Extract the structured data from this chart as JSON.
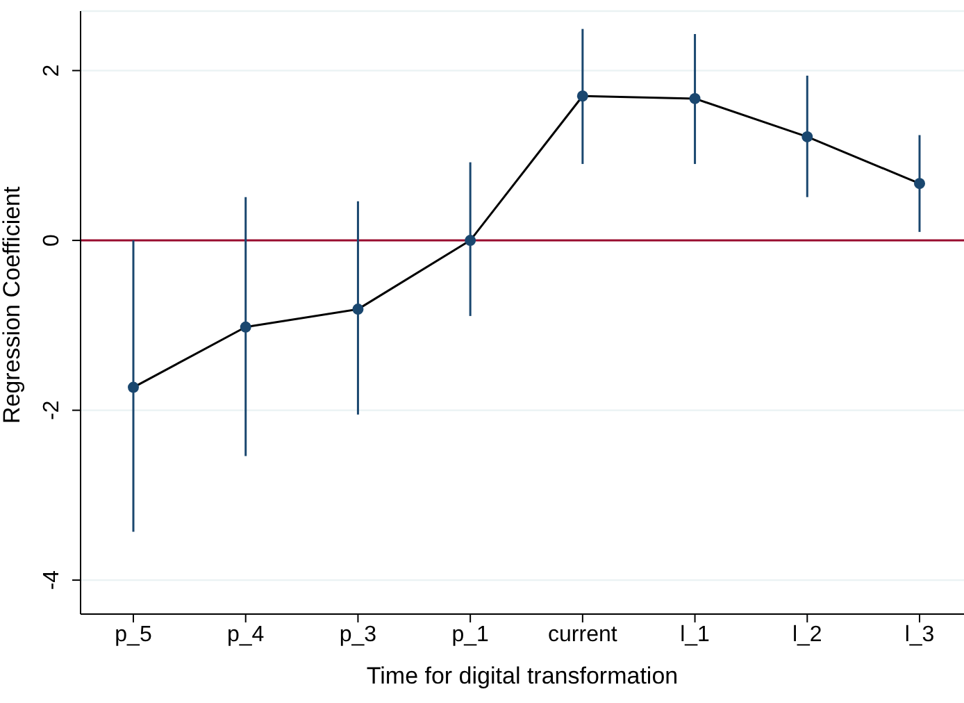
{
  "chart_data": {
    "type": "line",
    "xlabel": "Time for digital transformation",
    "ylabel": "Regression Coefficient",
    "categories": [
      "p_5",
      "p_4",
      "p_3",
      "p_1",
      "current",
      "l_1",
      "l_2",
      "l_3"
    ],
    "series": [
      {
        "type": "line",
        "color": "#000000",
        "marker": "none",
        "values": [
          -1.73,
          -1.02,
          -0.81,
          0,
          1.7,
          1.67,
          1.22,
          0.67
        ]
      },
      {
        "type": "scatter",
        "color": "#1a476f",
        "marker": "circle",
        "values": [
          -1.73,
          -1.02,
          -0.81,
          0,
          1.7,
          1.67,
          1.22,
          0.67
        ],
        "errors": [
          [
            -3.43,
            0
          ],
          [
            -2.54,
            0.51
          ],
          [
            -2.05,
            0.46
          ],
          [
            -0.89,
            0.92
          ],
          [
            0.9,
            2.49
          ],
          [
            0.9,
            2.43
          ],
          [
            0.51,
            1.94
          ],
          [
            0.1,
            1.24
          ]
        ]
      }
    ],
    "ylim": [
      -4.4,
      2.7
    ],
    "yticks": [
      -4,
      -2,
      0,
      2
    ],
    "grid": "y",
    "ref_lines": [
      {
        "axis": "y",
        "value": 0,
        "color": "#990c2e"
      }
    ]
  }
}
